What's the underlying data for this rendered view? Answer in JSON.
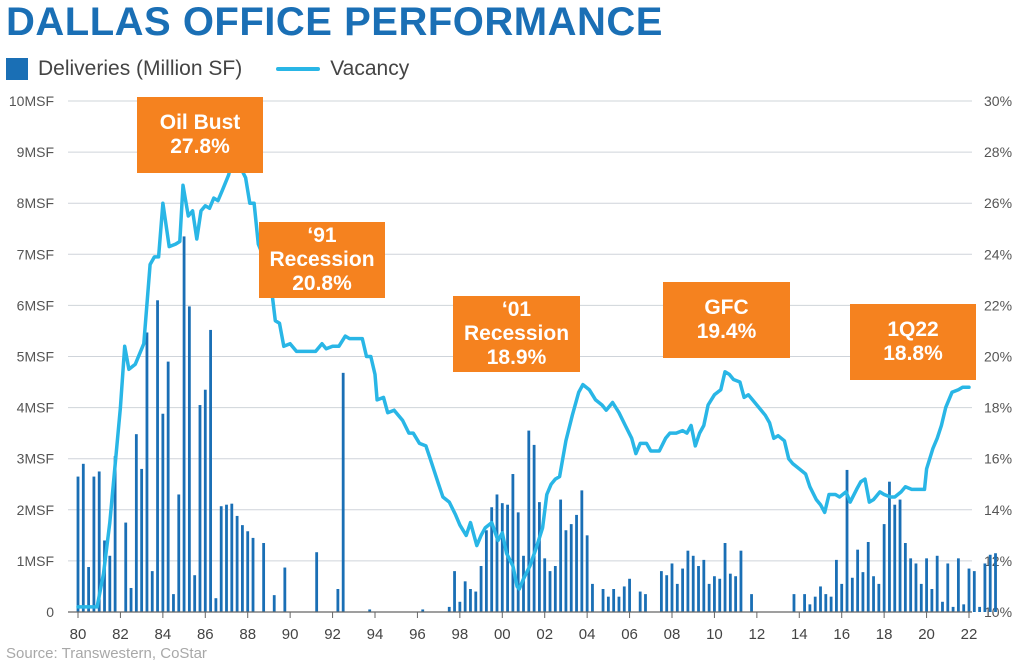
{
  "title": "DALLAS OFFICE PERFORMANCE",
  "legend": {
    "deliveries_label": "Deliveries (Million SF)",
    "vacancy_label": "Vacancy"
  },
  "source": "Source: Transwestern, CoStar",
  "colors": {
    "title": "#1a6fb5",
    "bars": "#1a6fb5",
    "vacancy": "#29b6e6",
    "callout": "#f5821f",
    "grid": "#cfd4da"
  },
  "callouts": [
    {
      "id": "oil-bust",
      "line1": "Oil Bust",
      "line2": "27.8%"
    },
    {
      "id": "91-recession",
      "line1": "‘91",
      "line2": "Recession",
      "line3": "20.8%"
    },
    {
      "id": "01-recession",
      "line1": "‘01",
      "line2": "Recession",
      "line3": "18.9%"
    },
    {
      "id": "gfc",
      "line1": "GFC",
      "line2": "19.4%"
    },
    {
      "id": "1q22",
      "line1": "1Q22",
      "line2": "18.8%"
    }
  ],
  "chart_data": {
    "type": "bar+line",
    "title": "DALLAS OFFICE PERFORMANCE",
    "x_ticks": [
      "80",
      "82",
      "84",
      "86",
      "88",
      "90",
      "92",
      "94",
      "96",
      "98",
      "00",
      "02",
      "04",
      "06",
      "08",
      "10",
      "12",
      "14",
      "16",
      "18",
      "20",
      "22"
    ],
    "x_tick_years": [
      1980,
      1982,
      1984,
      1986,
      1988,
      1990,
      1992,
      1994,
      1996,
      1998,
      2000,
      2002,
      2004,
      2006,
      2008,
      2010,
      2012,
      2014,
      2016,
      2018,
      2020,
      2022
    ],
    "y_left_ticks": [
      "0",
      "1MSF",
      "2MSF",
      "3MSF",
      "4MSF",
      "5MSF",
      "6MSF",
      "7MSF",
      "8MSF",
      "9MSF",
      "10MSF"
    ],
    "y_left_lim": [
      0,
      10
    ],
    "y_right_ticks": [
      "10%",
      "12%",
      "14%",
      "16%",
      "18%",
      "20%",
      "22%",
      "24%",
      "26%",
      "28%",
      "30%"
    ],
    "y_right_lim": [
      10,
      30
    ],
    "grid": true,
    "legend_position": "top-left",
    "series": [
      {
        "name": "Deliveries (Million SF)",
        "type": "bar",
        "axis": "left",
        "period": "quarterly",
        "start_year": 1980,
        "values": [
          2.65,
          2.9,
          0.88,
          2.65,
          2.75,
          1.4,
          1.1,
          3.05,
          0.0,
          1.75,
          0.47,
          3.48,
          2.8,
          5.47,
          0.8,
          6.1,
          3.88,
          4.9,
          0.35,
          2.3,
          7.35,
          5.98,
          0.72,
          4.05,
          4.35,
          5.52,
          0.27,
          2.07,
          2.1,
          2.12,
          1.88,
          1.7,
          1.58,
          1.45,
          0,
          1.35,
          0,
          0.33,
          0,
          0.87,
          0,
          0,
          0,
          0,
          0,
          1.17,
          0,
          0,
          0,
          0.45,
          4.68,
          0,
          0,
          0,
          0,
          0.05,
          0,
          0,
          0,
          0,
          0,
          0,
          0,
          0,
          0,
          0.05,
          0,
          0,
          0,
          0,
          0.1,
          0.8,
          0.2,
          0.6,
          0.45,
          0.4,
          0.9,
          1.6,
          2.05,
          2.3,
          2.13,
          2.1,
          2.7,
          1.95,
          1.1,
          3.55,
          3.27,
          2.15,
          1.05,
          0.8,
          0.9,
          2.2,
          1.6,
          1.72,
          1.9,
          2.38,
          1.5,
          0.55,
          0,
          0.45,
          0.3,
          0.45,
          0.3,
          0.5,
          0.65,
          0,
          0.4,
          0.35,
          0,
          0,
          0.8,
          0.72,
          0.95,
          0.55,
          0.85,
          1.2,
          1.1,
          0.9,
          1.02,
          0.55,
          0.7,
          0.65,
          1.35,
          0.75,
          0.7,
          1.2,
          0,
          0.35,
          0,
          0,
          0,
          0,
          0,
          0,
          0,
          0.35,
          0,
          0.35,
          0.15,
          0.3,
          0.5,
          0.35,
          0.3,
          1.02,
          0.55,
          2.78,
          0.67,
          1.22,
          0.78,
          1.37,
          0.7,
          0.55,
          1.72,
          2.55,
          2.1,
          2.2,
          1.35,
          1.05,
          0.95,
          0.55,
          1.05,
          0.45,
          1.1,
          0.2,
          0.95,
          0.1,
          1.05,
          0.15,
          0.85,
          0.8,
          0.1,
          0.95,
          1.12,
          1.15
        ]
      },
      {
        "name": "Vacancy",
        "type": "line",
        "axis": "right",
        "unit": "%",
        "points": [
          [
            1980.0,
            10.2
          ],
          [
            1980.9,
            10.2
          ],
          [
            1981.2,
            11.5
          ],
          [
            1981.5,
            13.5
          ],
          [
            1982.0,
            18.0
          ],
          [
            1982.2,
            20.4
          ],
          [
            1982.4,
            19.5
          ],
          [
            1982.7,
            19.7
          ],
          [
            1983.1,
            20.5
          ],
          [
            1983.4,
            23.6
          ],
          [
            1983.6,
            23.9
          ],
          [
            1983.8,
            23.9
          ],
          [
            1984.0,
            26.0
          ],
          [
            1984.3,
            24.3
          ],
          [
            1984.6,
            24.4
          ],
          [
            1984.8,
            24.5
          ],
          [
            1984.95,
            26.7
          ],
          [
            1985.2,
            25.5
          ],
          [
            1985.4,
            25.7
          ],
          [
            1985.6,
            24.6
          ],
          [
            1985.8,
            25.7
          ],
          [
            1986.0,
            25.9
          ],
          [
            1986.2,
            25.8
          ],
          [
            1986.4,
            26.2
          ],
          [
            1986.6,
            26.1
          ],
          [
            1986.8,
            26.5
          ],
          [
            1987.1,
            27.1
          ],
          [
            1987.3,
            27.8
          ],
          [
            1987.6,
            27.5
          ],
          [
            1987.9,
            27.0
          ],
          [
            1988.1,
            26.0
          ],
          [
            1988.3,
            26.0
          ],
          [
            1988.5,
            24.4
          ],
          [
            1988.6,
            24.2
          ],
          [
            1988.8,
            23.5
          ],
          [
            1988.9,
            22.7
          ],
          [
            1989.1,
            22.8
          ],
          [
            1989.3,
            21.4
          ],
          [
            1989.5,
            21.3
          ],
          [
            1989.7,
            20.4
          ],
          [
            1990.0,
            20.5
          ],
          [
            1990.3,
            20.2
          ],
          [
            1990.6,
            20.2
          ],
          [
            1990.9,
            20.2
          ],
          [
            1991.2,
            20.2
          ],
          [
            1991.5,
            20.5
          ],
          [
            1991.7,
            20.3
          ],
          [
            1992.0,
            20.4
          ],
          [
            1992.3,
            20.4
          ],
          [
            1992.6,
            20.8
          ],
          [
            1992.8,
            20.7
          ],
          [
            1993.1,
            20.7
          ],
          [
            1993.4,
            20.7
          ],
          [
            1993.6,
            20.0
          ],
          [
            1993.8,
            20.0
          ],
          [
            1994.0,
            19.3
          ],
          [
            1994.1,
            18.3
          ],
          [
            1994.4,
            18.4
          ],
          [
            1994.6,
            17.8
          ],
          [
            1994.9,
            17.9
          ],
          [
            1995.3,
            17.5
          ],
          [
            1995.6,
            17.0
          ],
          [
            1995.8,
            17.0
          ],
          [
            1996.1,
            16.6
          ],
          [
            1996.4,
            16.5
          ],
          [
            1996.6,
            16.0
          ],
          [
            1996.8,
            15.5
          ],
          [
            1997.0,
            15.0
          ],
          [
            1997.2,
            14.5
          ],
          [
            1997.5,
            14.3
          ],
          [
            1997.8,
            13.8
          ],
          [
            1998.0,
            13.4
          ],
          [
            1998.3,
            13.0
          ],
          [
            1998.5,
            13.5
          ],
          [
            1998.8,
            12.6
          ],
          [
            1999.0,
            13.0
          ],
          [
            1999.2,
            13.3
          ],
          [
            1999.5,
            13.5
          ],
          [
            1999.8,
            12.8
          ],
          [
            2000.0,
            13.1
          ],
          [
            2000.2,
            12.3
          ],
          [
            2000.5,
            11.8
          ],
          [
            2000.7,
            11.0
          ],
          [
            2000.8,
            10.9
          ],
          [
            2001.0,
            11.3
          ],
          [
            2001.3,
            11.8
          ],
          [
            2001.6,
            12.5
          ],
          [
            2001.9,
            13.3
          ],
          [
            2002.1,
            14.6
          ],
          [
            2002.3,
            15.0
          ],
          [
            2002.5,
            15.2
          ],
          [
            2002.7,
            15.3
          ],
          [
            2003.0,
            16.7
          ],
          [
            2003.3,
            17.7
          ],
          [
            2003.6,
            18.6
          ],
          [
            2003.8,
            18.9
          ],
          [
            2004.1,
            18.7
          ],
          [
            2004.4,
            18.3
          ],
          [
            2004.7,
            18.1
          ],
          [
            2004.9,
            17.9
          ],
          [
            2005.2,
            18.2
          ],
          [
            2005.5,
            17.8
          ],
          [
            2005.8,
            17.3
          ],
          [
            2006.1,
            16.8
          ],
          [
            2006.3,
            16.2
          ],
          [
            2006.5,
            16.6
          ],
          [
            2006.8,
            16.6
          ],
          [
            2007.0,
            16.3
          ],
          [
            2007.2,
            16.3
          ],
          [
            2007.4,
            16.3
          ],
          [
            2007.7,
            16.8
          ],
          [
            2007.9,
            17.0
          ],
          [
            2008.2,
            17.0
          ],
          [
            2008.5,
            17.1
          ],
          [
            2008.7,
            17.0
          ],
          [
            2008.9,
            17.3
          ],
          [
            2009.1,
            16.5
          ],
          [
            2009.3,
            17.0
          ],
          [
            2009.5,
            17.3
          ],
          [
            2009.7,
            18.1
          ],
          [
            2010.0,
            18.5
          ],
          [
            2010.3,
            18.7
          ],
          [
            2010.5,
            19.4
          ],
          [
            2010.7,
            19.3
          ],
          [
            2010.9,
            19.1
          ],
          [
            2011.2,
            19.0
          ],
          [
            2011.4,
            18.4
          ],
          [
            2011.6,
            18.5
          ],
          [
            2011.8,
            18.3
          ],
          [
            2012.1,
            18.0
          ],
          [
            2012.4,
            17.7
          ],
          [
            2012.6,
            17.4
          ],
          [
            2012.8,
            16.8
          ],
          [
            2013.0,
            16.9
          ],
          [
            2013.3,
            16.7
          ],
          [
            2013.5,
            16.0
          ],
          [
            2013.7,
            15.8
          ],
          [
            2014.0,
            15.6
          ],
          [
            2014.3,
            15.4
          ],
          [
            2014.5,
            14.9
          ],
          [
            2014.8,
            14.4
          ],
          [
            2015.0,
            14.2
          ],
          [
            2015.2,
            13.9
          ],
          [
            2015.4,
            14.6
          ],
          [
            2015.7,
            14.6
          ],
          [
            2015.9,
            14.5
          ],
          [
            2016.2,
            14.7
          ],
          [
            2016.4,
            14.3
          ],
          [
            2016.7,
            14.8
          ],
          [
            2016.9,
            15.1
          ],
          [
            2017.1,
            15.2
          ],
          [
            2017.3,
            14.3
          ],
          [
            2017.5,
            14.4
          ],
          [
            2017.8,
            14.7
          ],
          [
            2018.0,
            14.6
          ],
          [
            2018.3,
            14.5
          ],
          [
            2018.5,
            14.5
          ],
          [
            2018.8,
            14.7
          ],
          [
            2019.0,
            14.9
          ],
          [
            2019.3,
            14.8
          ],
          [
            2019.7,
            14.8
          ],
          [
            2019.9,
            14.8
          ],
          [
            2020.0,
            15.6
          ],
          [
            2020.3,
            16.4
          ],
          [
            2020.5,
            16.8
          ],
          [
            2020.7,
            17.3
          ],
          [
            2020.9,
            18.0
          ],
          [
            2021.2,
            18.6
          ],
          [
            2021.5,
            18.7
          ],
          [
            2021.7,
            18.8
          ],
          [
            2021.9,
            18.8
          ],
          [
            2022.0,
            18.8
          ]
        ]
      }
    ],
    "annotations": [
      "Oil Bust 27.8%",
      "‘91 Recession 20.8%",
      "‘01 Recession 18.9%",
      "GFC 19.4%",
      "1Q22 18.8%"
    ]
  }
}
